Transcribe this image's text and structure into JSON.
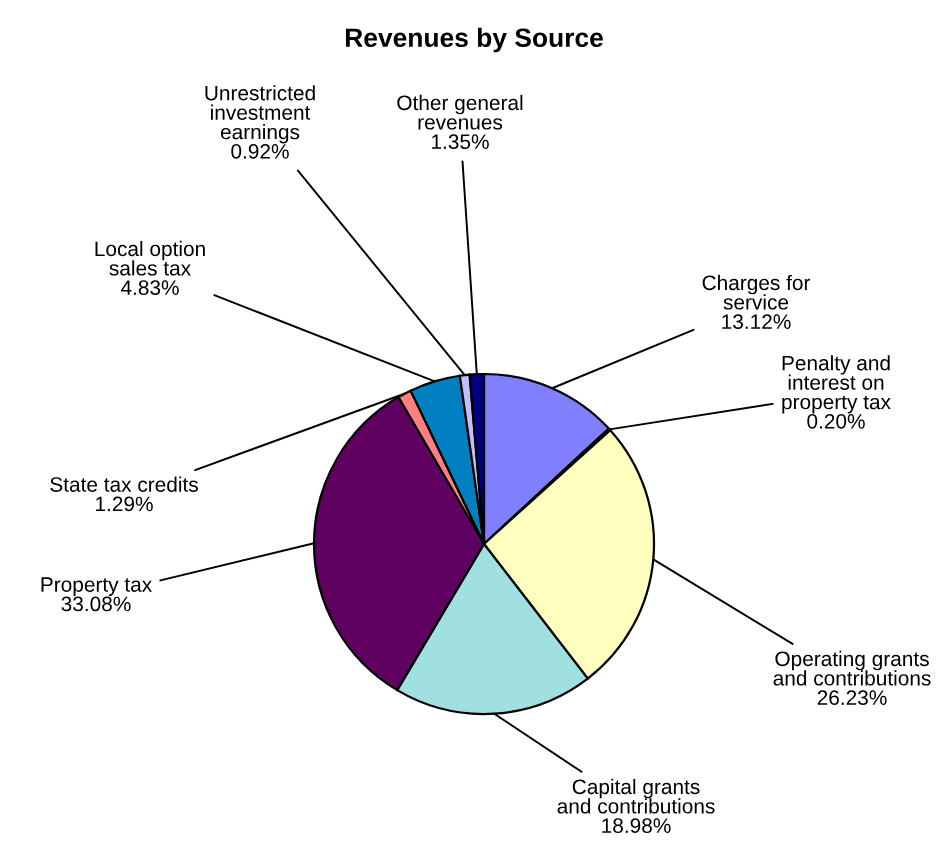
{
  "chart_data": {
    "type": "pie",
    "title": "Revenues by Source",
    "categories": [
      "Charges for\nservice",
      "Penalty and\ninterest on\nproperty tax",
      "Operating grants\nand contributions",
      "Capital grants\nand contributions",
      "Property tax",
      "State tax credits",
      "Local option\nsales tax",
      "Unrestricted\ninvestment\nearnings",
      "Other general\nrevenues"
    ],
    "values": [
      13.12,
      0.2,
      26.23,
      18.98,
      33.08,
      1.29,
      4.83,
      0.92,
      1.35
    ],
    "value_labels": [
      "13.12%",
      "0.20%",
      "26.23%",
      "18.98%",
      "33.08%",
      "1.29%",
      "4.83%",
      "0.92%",
      "1.35%"
    ],
    "colors": [
      "#8080ff",
      "#333333",
      "#ffffc0",
      "#a0e0e0",
      "#600060",
      "#ff8080",
      "#0080c0",
      "#c0c0ff",
      "#000080"
    ],
    "legend": false
  }
}
